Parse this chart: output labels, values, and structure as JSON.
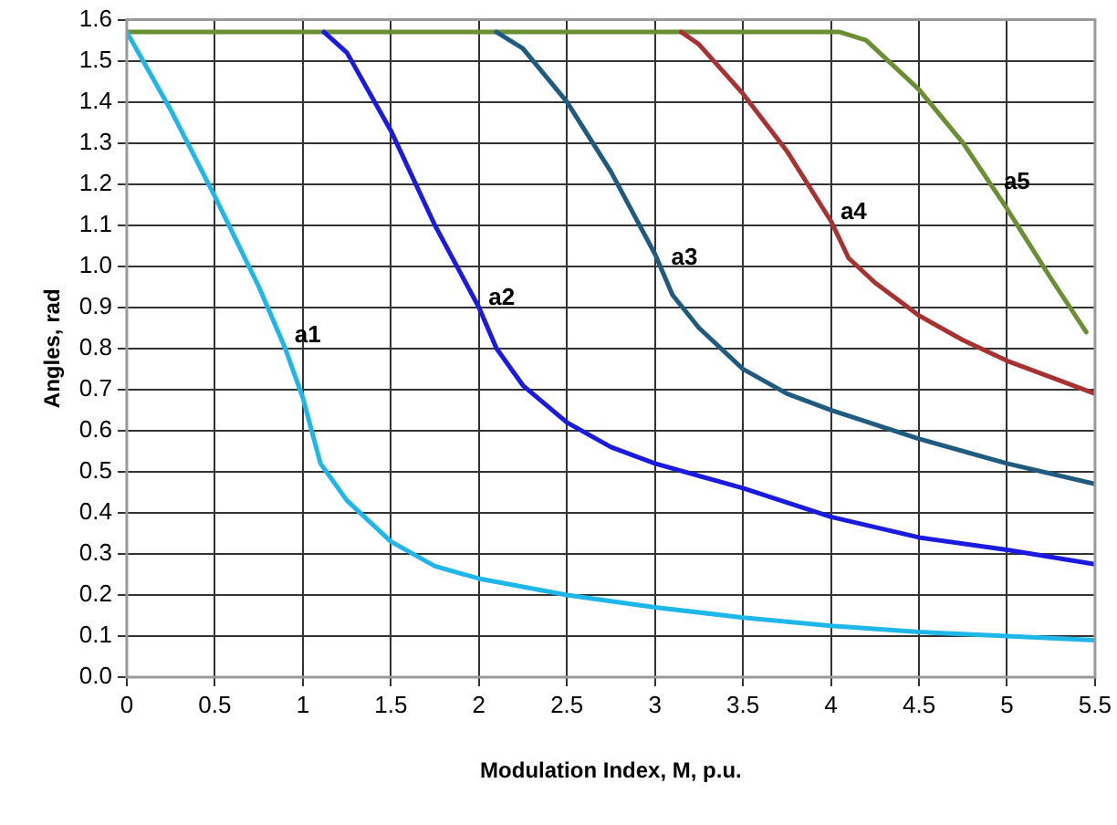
{
  "chart_data": {
    "type": "line",
    "xlabel": "Modulation Index, M, p.u.",
    "ylabel": "Angles, rad",
    "xlim": [
      0,
      5.5
    ],
    "xticks": [
      0,
      0.5,
      1,
      1.5,
      2,
      2.5,
      3,
      3.5,
      4,
      4.5,
      5,
      5.5
    ],
    "ylim": [
      0,
      1.6
    ],
    "yticks": [
      {
        "value": 0,
        "label": "0.0"
      },
      {
        "value": 0.1,
        "label": "0.1"
      },
      {
        "value": 0.2,
        "label": "0.2"
      },
      {
        "value": 0.3,
        "label": "0.3"
      },
      {
        "value": 0.4,
        "label": "0.4"
      },
      {
        "value": 0.5,
        "label": "0.5"
      },
      {
        "value": 0.6,
        "label": "0.6"
      },
      {
        "value": 0.7,
        "label": "0.7"
      },
      {
        "value": 0.8,
        "label": "0.8"
      },
      {
        "value": 0.9,
        "label": "0.9"
      },
      {
        "value": 1,
        "label": "1.0"
      },
      {
        "value": 1.1,
        "label": "1.1"
      },
      {
        "value": 1.2,
        "label": "1.2"
      },
      {
        "value": 1.3,
        "label": "1.3"
      },
      {
        "value": 1.4,
        "label": "1.4"
      },
      {
        "value": 1.5,
        "label": "1.5"
      },
      {
        "value": 1.6,
        "label": "1.6"
      }
    ],
    "grid": true,
    "legend": false,
    "marker": "none",
    "line_style": "solid",
    "series": [
      {
        "name": "a1",
        "color": "#1fb6ea",
        "x": [
          0,
          0.25,
          0.5,
          0.75,
          0.9,
          1,
          1.1,
          1.25,
          1.5,
          1.75,
          2,
          2.5,
          3,
          3.5,
          4,
          4.5,
          5,
          5.5
        ],
        "values": [
          1.57,
          1.38,
          1.17,
          0.95,
          0.8,
          0.68,
          0.52,
          0.43,
          0.33,
          0.27,
          0.24,
          0.2,
          0.17,
          0.145,
          0.125,
          0.11,
          0.1,
          0.09
        ]
      },
      {
        "name": "a2",
        "color": "#1a1ae0",
        "x": [
          1.12,
          1.25,
          1.5,
          1.75,
          2,
          2.1,
          2.25,
          2.5,
          2.75,
          3,
          3.5,
          4,
          4.5,
          5,
          5.5
        ],
        "values": [
          1.57,
          1.52,
          1.33,
          1.1,
          0.9,
          0.8,
          0.71,
          0.62,
          0.56,
          0.52,
          0.46,
          0.39,
          0.34,
          0.31,
          0.275
        ]
      },
      {
        "name": "a3",
        "color": "#1f5a80",
        "x": [
          2.1,
          2.25,
          2.5,
          2.75,
          3,
          3.1,
          3.25,
          3.5,
          3.75,
          4,
          4.5,
          5,
          5.5
        ],
        "values": [
          1.57,
          1.53,
          1.4,
          1.23,
          1.03,
          0.93,
          0.85,
          0.75,
          0.69,
          0.65,
          0.58,
          0.52,
          0.47
        ]
      },
      {
        "name": "a4",
        "color": "#a83232",
        "x": [
          3.15,
          3.25,
          3.5,
          3.75,
          4,
          4.1,
          4.25,
          4.5,
          4.75,
          5,
          5.25,
          5.5
        ],
        "values": [
          1.57,
          1.54,
          1.42,
          1.28,
          1.11,
          1.02,
          0.96,
          0.88,
          0.82,
          0.77,
          0.73,
          0.69
        ]
      },
      {
        "name": "a5",
        "color": "#6a8e32",
        "x": [
          0,
          4.05,
          4.2,
          4.5,
          4.75,
          5,
          5.25,
          5.45
        ],
        "values": [
          1.57,
          1.57,
          1.55,
          1.43,
          1.3,
          1.14,
          0.97,
          0.84
        ]
      }
    ]
  }
}
